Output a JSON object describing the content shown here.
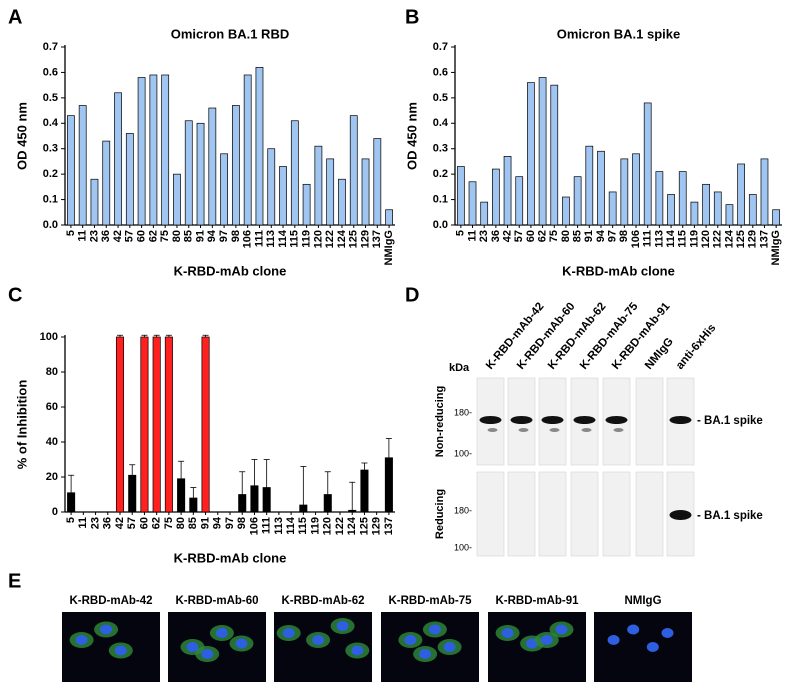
{
  "chart_data": [
    {
      "type": "bar",
      "panel": "A",
      "title": "Omicron BA.1 RBD",
      "ylabel": "OD 450 nm",
      "xlabel": "K-RBD-mAb clone",
      "categories": [
        "5",
        "11",
        "23",
        "36",
        "42",
        "57",
        "60",
        "62",
        "75",
        "80",
        "85",
        "91",
        "94",
        "97",
        "98",
        "106",
        "111",
        "113",
        "114",
        "115",
        "119",
        "120",
        "122",
        "124",
        "125",
        "129",
        "137",
        "NMIgG"
      ],
      "values": [
        0.43,
        0.47,
        0.18,
        0.33,
        0.52,
        0.36,
        0.58,
        0.59,
        0.59,
        0.2,
        0.41,
        0.4,
        0.46,
        0.28,
        0.47,
        0.59,
        0.62,
        0.3,
        0.23,
        0.41,
        0.16,
        0.31,
        0.26,
        0.18,
        0.43,
        0.26,
        0.34,
        0.06
      ],
      "color": "#9fc5f0",
      "ylim": [
        0,
        0.7
      ],
      "yticks": [
        {
          "value": 0,
          "label": "0.0"
        },
        0.1,
        0.2,
        0.3,
        0.4,
        0.5,
        0.6,
        0.7
      ]
    },
    {
      "type": "bar",
      "panel": "B",
      "title": "Omicron BA.1 spike",
      "ylabel": "OD 450 nm",
      "xlabel": "K-RBD-mAb clone",
      "categories": [
        "5",
        "11",
        "23",
        "36",
        "42",
        "57",
        "60",
        "62",
        "75",
        "80",
        "85",
        "91",
        "94",
        "97",
        "98",
        "106",
        "111",
        "113",
        "114",
        "115",
        "119",
        "120",
        "122",
        "124",
        "125",
        "129",
        "137",
        "NMIgG"
      ],
      "values": [
        0.23,
        0.17,
        0.09,
        0.22,
        0.27,
        0.19,
        0.56,
        0.58,
        0.55,
        0.11,
        0.19,
        0.31,
        0.29,
        0.13,
        0.26,
        0.28,
        0.48,
        0.21,
        0.12,
        0.21,
        0.09,
        0.16,
        0.13,
        0.08,
        0.24,
        0.12,
        0.26,
        0.06
      ],
      "color": "#9fc5f0",
      "ylim": [
        0,
        0.7
      ],
      "yticks": [
        {
          "value": 0,
          "label": "0.0"
        },
        0.1,
        0.2,
        0.3,
        0.4,
        0.5,
        0.6,
        0.7
      ]
    },
    {
      "type": "bar",
      "panel": "C",
      "ylabel": "% of Inhibition",
      "xlabel": "K-RBD-mAb clone",
      "categories": [
        "5",
        "11",
        "23",
        "36",
        "42",
        "57",
        "60",
        "62",
        "75",
        "80",
        "85",
        "91",
        "94",
        "97",
        "98",
        "106",
        "111",
        "113",
        "114",
        "115",
        "119",
        "120",
        "122",
        "124",
        "125",
        "129",
        "137"
      ],
      "values": [
        11,
        0,
        0,
        0,
        100,
        21,
        100,
        100,
        100,
        19,
        8,
        100,
        0,
        0,
        10,
        15,
        14,
        0,
        0,
        4,
        0,
        10,
        0,
        1,
        24,
        0,
        31
      ],
      "errors": [
        10,
        0,
        0,
        0,
        1,
        6,
        1,
        1,
        1,
        10,
        6,
        1,
        0,
        0,
        13,
        15,
        16,
        0,
        0,
        22,
        0,
        13,
        0,
        16,
        4,
        0,
        11
      ],
      "colors": [
        "#000000",
        "#000000",
        "#000000",
        "#000000",
        "#ff2020",
        "#000000",
        "#ff2020",
        "#ff2020",
        "#ff2020",
        "#000000",
        "#000000",
        "#ff2020",
        "#000000",
        "#000000",
        "#000000",
        "#000000",
        "#000000",
        "#000000",
        "#000000",
        "#000000",
        "#000000",
        "#000000",
        "#000000",
        "#000000",
        "#000000",
        "#000000",
        "#000000"
      ],
      "ylim": [
        0,
        100
      ],
      "yticks": [
        0,
        20,
        40,
        60,
        80,
        100
      ]
    }
  ],
  "blot": {
    "panel": "D",
    "kda": "kDa",
    "columns": [
      "K-RBD-mAb-42",
      "K-RBD-mAb-60",
      "K-RBD-mAb-62",
      "K-RBD-mAb-75",
      "K-RBD-mAb-91",
      "NMIgG",
      "anti-6xHis"
    ],
    "rows": [
      {
        "label": "Non-reducing",
        "markers": [
          "180-",
          "100-"
        ],
        "band": "- BA.1 spike"
      },
      {
        "label": "Reducing",
        "markers": [
          "180-",
          "100-"
        ],
        "band": "- BA.1 spike"
      }
    ]
  },
  "images": {
    "panel": "E",
    "labels": [
      "K-RBD-mAb-42",
      "K-RBD-mAb-60",
      "K-RBD-mAb-62",
      "K-RBD-mAb-75",
      "K-RBD-mAb-91",
      "NMIgG"
    ]
  }
}
